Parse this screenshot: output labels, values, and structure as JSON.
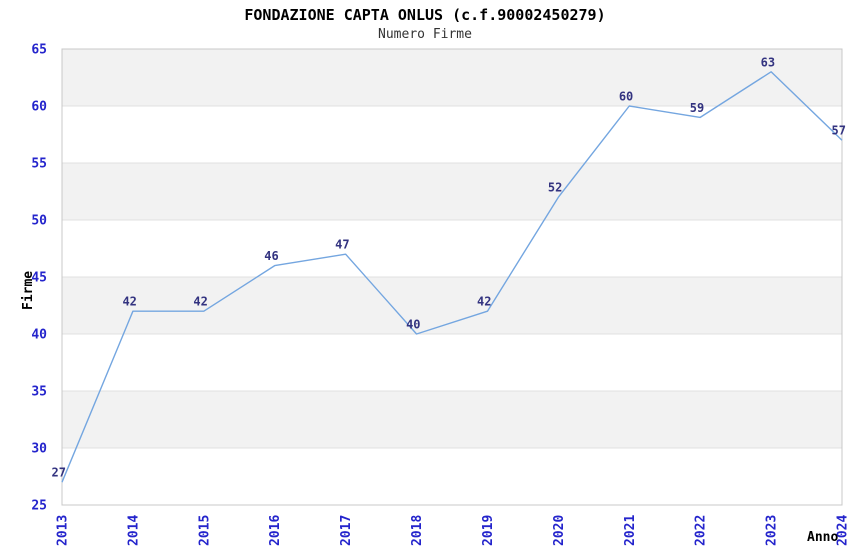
{
  "header": {
    "title": "FONDAZIONE CAPTA ONLUS (c.f.90002450279)",
    "subtitle": "Numero Firme"
  },
  "chart_data": {
    "type": "line",
    "title": "FONDAZIONE CAPTA ONLUS (c.f.90002450279)",
    "subtitle": "Numero Firme",
    "x": [
      2013,
      2014,
      2015,
      2016,
      2017,
      2018,
      2019,
      2020,
      2021,
      2022,
      2023,
      2024
    ],
    "series": [
      {
        "name": "Numero Firme",
        "values": [
          27,
          42,
          42,
          46,
          47,
          40,
          42,
          52,
          60,
          59,
          63,
          57
        ]
      }
    ],
    "point_labels_shown": true,
    "xlabel": "Anno",
    "ylabel": "Firme",
    "ylim": [
      25,
      65
    ],
    "yticks": [
      25,
      30,
      35,
      40,
      45,
      50,
      55,
      60,
      65
    ],
    "ytick_step": 5,
    "x_tick_rotation": -90,
    "grid": "horizontal-bands",
    "legend": "none",
    "colors": {
      "line": "#74a6e0",
      "point_labels": "#333380",
      "tick_labels": "#2424cc",
      "band": "#f2f2f2",
      "gridline": "#e0e0e0",
      "plot_border": "#c8c8c8",
      "title": "#000000",
      "subtitle": "#333333",
      "axis_label": "#000000",
      "background": "#ffffff"
    }
  }
}
